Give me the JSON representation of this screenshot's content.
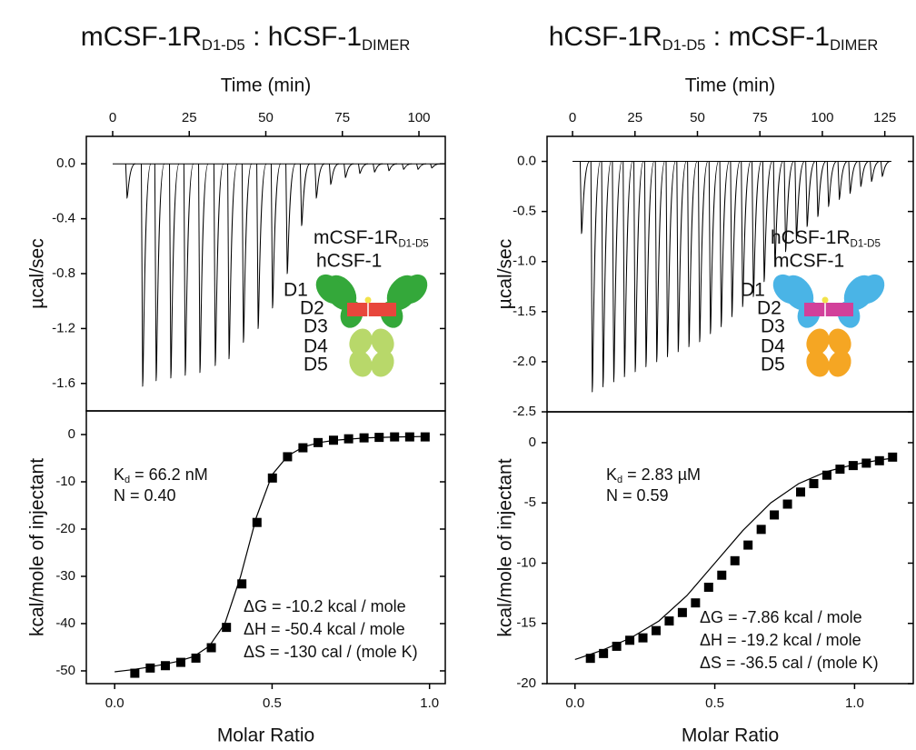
{
  "chart_data": [
    {
      "type": "spike",
      "title": [
        {
          "text": "mCSF-1R"
        },
        {
          "text": "D1-D5",
          "subscript": true
        },
        {
          "text": " : hCSF-1"
        },
        {
          "text": "DIMER",
          "subscript": true
        }
      ],
      "xlabel": "Time (min)",
      "ylabel": "µcal/sec",
      "color": "#000000",
      "x": [
        4.7,
        9.8,
        14.2,
        19.0,
        23.7,
        28.5,
        33.5,
        38.0,
        42.7,
        47.5,
        52.2,
        57.0,
        61.7,
        66.5,
        71.2,
        76.0,
        80.7,
        85.5,
        90.2,
        95.0,
        99.7,
        104.2
      ],
      "values": [
        -0.25,
        -1.62,
        -1.58,
        -1.56,
        -1.54,
        -1.52,
        -1.47,
        -1.42,
        -1.3,
        -1.2,
        -1.05,
        -0.8,
        -0.45,
        -0.25,
        -0.15,
        -0.1,
        -0.07,
        -0.06,
        -0.05,
        -0.04,
        -0.04,
        -0.03
      ],
      "xlim": [
        -8.6,
        108.6
      ],
      "xticks": [
        0,
        25,
        50,
        75,
        100
      ],
      "ylim": [
        -1.8,
        0.2
      ],
      "yticks": [
        {
          "value": 0,
          "label": "0.0"
        },
        -0.4,
        -0.8,
        -1.2,
        -1.6
      ],
      "inset": {
        "receptor": [
          {
            "text": "mCSF-1R"
          },
          {
            "text": "D1-D5",
            "subscript": true
          }
        ],
        "receptor_color": "#3cb43c",
        "ligand": "hCSF-1",
        "ligand_color": "#e8463c",
        "domains": [
          "D1",
          "D2",
          "D3",
          "D4",
          "D5"
        ],
        "upper_shape_color": "#34a83a",
        "lower_shape_color": "#b8d86a",
        "ligand_shape_color": "#e8463c"
      }
    },
    {
      "type": "isotherm",
      "xlabel": "Molar Ratio",
      "ylabel": "kcal/mole of injectant",
      "color": "#000000",
      "points": {
        "x": [
          0.064,
          0.113,
          0.161,
          0.21,
          0.258,
          0.307,
          0.355,
          0.404,
          0.452,
          0.501,
          0.549,
          0.598,
          0.646,
          0.695,
          0.743,
          0.792,
          0.84,
          0.889,
          0.937,
          0.986
        ],
        "values": [
          -50.5,
          -49.4,
          -48.9,
          -48.2,
          -47.3,
          -45.1,
          -40.8,
          -31.6,
          -18.6,
          -9.2,
          -4.7,
          -2.8,
          -1.7,
          -1.2,
          -0.9,
          -0.7,
          -0.6,
          -0.5,
          -0.5,
          -0.5
        ]
      },
      "fit": {
        "x": [
          0,
          0.05,
          0.1,
          0.15,
          0.2,
          0.25,
          0.3,
          0.35,
          0.4,
          0.45,
          0.5,
          0.55,
          0.6,
          0.65,
          0.7,
          0.8,
          0.9,
          1.0
        ],
        "values": [
          -50.2,
          -49.8,
          -49.3,
          -48.7,
          -48,
          -47,
          -44.8,
          -40,
          -30,
          -17.5,
          -8.5,
          -4.5,
          -2.6,
          -1.7,
          -1.2,
          -0.7,
          -0.5,
          -0.4
        ]
      },
      "xlim": [
        -0.09,
        1.05
      ],
      "xticks": [
        {
          "value": 0,
          "label": "0.0"
        },
        0.5,
        {
          "value": 1,
          "label": "1.0"
        }
      ],
      "ylim": [
        -52.7,
        5
      ],
      "yticks": [
        0,
        -10,
        -20,
        -30,
        -40,
        -50
      ],
      "kd": {
        "symbol": "K",
        "subscript": "d",
        "text": " = 66.2 nM"
      },
      "n": "N = 0.40",
      "thermo": [
        "ΔG = -10.2 kcal / mole",
        "ΔH = -50.4 kcal / mole",
        "ΔS = -130 cal / (mole K)"
      ]
    },
    {
      "type": "spike",
      "title": [
        {
          "text": "hCSF-1R"
        },
        {
          "text": "D1-D5",
          "subscript": true
        },
        {
          "text": " : mCSF-1"
        },
        {
          "text": "DIMER",
          "subscript": true
        }
      ],
      "xlabel": "Time (min)",
      "ylabel": "µcal/sec",
      "color": "#000000",
      "x": [
        3.6,
        7.9,
        12.2,
        16.5,
        20.8,
        25.1,
        29.4,
        33.7,
        38.0,
        42.3,
        46.6,
        50.9,
        55.2,
        59.5,
        63.8,
        68.1,
        72.4,
        76.7,
        81.0,
        85.3,
        89.6,
        93.9,
        98.2,
        102.5,
        106.8,
        111.1,
        115.4,
        119.7,
        124.0
      ],
      "values": [
        -0.72,
        -2.3,
        -2.25,
        -2.2,
        -2.15,
        -2.1,
        -2.05,
        -2.0,
        -1.95,
        -1.9,
        -1.85,
        -1.8,
        -1.72,
        -1.65,
        -1.55,
        -1.45,
        -1.35,
        -1.2,
        -1.05,
        -0.9,
        -0.78,
        -0.65,
        -0.55,
        -0.45,
        -0.38,
        -0.32,
        -0.25,
        -0.2,
        -0.15
      ],
      "xlim": [
        -10.2,
        136.4
      ],
      "xticks": [
        0,
        25,
        50,
        75,
        100,
        125
      ],
      "ylim": [
        -2.5,
        0.25
      ],
      "yticks": [
        {
          "value": 0,
          "label": "0.0"
        },
        -0.5,
        {
          "value": -1,
          "label": "-1.0"
        },
        -1.5,
        {
          "value": -2,
          "label": "-2.0"
        },
        -2.5
      ],
      "inset": {
        "receptor": [
          {
            "text": "hCSF-1R"
          },
          {
            "text": "D1-D5",
            "subscript": true
          }
        ],
        "receptor_color": "#3fb0e4",
        "ligand": "mCSF-1",
        "ligand_color": "#d2409a",
        "domains": [
          "D1",
          "D2",
          "D3",
          "D4",
          "D5"
        ],
        "upper_shape_color": "#4ab4e6",
        "lower_shape_color": "#f5a623",
        "ligand_shape_color": "#d2409a"
      }
    },
    {
      "type": "isotherm",
      "xlabel": "Molar Ratio",
      "ylabel": "kcal/mole of injectant",
      "color": "#000000",
      "points": {
        "x": [
          0.055,
          0.102,
          0.149,
          0.196,
          0.243,
          0.29,
          0.337,
          0.384,
          0.431,
          0.478,
          0.525,
          0.572,
          0.619,
          0.666,
          0.713,
          0.76,
          0.807,
          0.854,
          0.901,
          0.948,
          0.995,
          1.042,
          1.089,
          1.136
        ],
        "values": [
          -17.9,
          -17.5,
          -16.9,
          -16.4,
          -16.2,
          -15.6,
          -14.8,
          -14.1,
          -13.3,
          -12.0,
          -11.0,
          -9.8,
          -8.5,
          -7.2,
          -6.0,
          -5.1,
          -4.1,
          -3.4,
          -2.7,
          -2.2,
          -1.9,
          -1.7,
          -1.5,
          -1.2
        ]
      },
      "fit": {
        "x": [
          0,
          0.1,
          0.2,
          0.3,
          0.4,
          0.5,
          0.6,
          0.7,
          0.8,
          0.9,
          1.0,
          1.1,
          1.15
        ],
        "values": [
          -18.0,
          -17.2,
          -16.2,
          -14.8,
          -12.7,
          -10.0,
          -7.3,
          -5.0,
          -3.4,
          -2.4,
          -1.8,
          -1.4,
          -1.25
        ]
      },
      "xlim": [
        -0.1,
        1.21
      ],
      "xticks": [
        {
          "value": 0,
          "label": "0.0"
        },
        0.5,
        {
          "value": 1,
          "label": "1.0"
        }
      ],
      "ylim": [
        -20,
        2.56
      ],
      "yticks": [
        0,
        -5,
        -10,
        -15,
        -20
      ],
      "kd": {
        "symbol": "K",
        "subscript": "d",
        "text": " = 2.83 µM"
      },
      "n": "N = 0.59",
      "thermo": [
        "ΔG = -7.86 kcal / mole",
        "ΔH = -19.2 kcal / mole",
        "ΔS = -36.5 cal / (mole K)"
      ]
    }
  ]
}
